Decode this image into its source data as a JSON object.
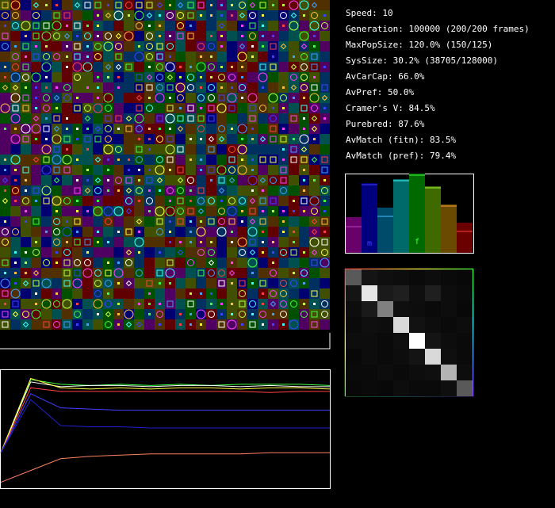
{
  "stats": [
    "Speed: 10",
    "Generation: 100000 (200/200 frames)",
    "MaxPopSize: 120.0% (150/125)",
    "SysSize: 30.2% (38705/128000)",
    "AvCarCap: 66.0%",
    "AvPref: 50.0%",
    "Cramer's V: 84.5%",
    "Purebred: 87.6%",
    "AvMatch (fitn): 83.5%",
    "AvMatch (pref): 79.4%"
  ],
  "bars": {
    "values": [
      0.45,
      0.88,
      0.57,
      0.93,
      1.0,
      0.84,
      0.61,
      0.38
    ],
    "markers": [
      0.33,
      0.86,
      0.46,
      0.91,
      0.98,
      0.82,
      0.59,
      0.27
    ],
    "colors": [
      "#6a006a",
      "#00007f",
      "#004a6a",
      "#006a6a",
      "#006a00",
      "#3f6a00",
      "#6a4a00",
      "#6a0000"
    ],
    "marker_colors": [
      "#c040c0",
      "#4040ff",
      "#40c0ff",
      "#40ffff",
      "#40ff40",
      "#a0ff40",
      "#ffa040",
      "#ff4040"
    ],
    "labels": [
      "m",
      "f"
    ]
  },
  "matrix": {
    "rows": [
      [
        0.35,
        0.08,
        0.06,
        0.05,
        0.04,
        0.05,
        0.04,
        0.03
      ],
      [
        0.08,
        0.9,
        0.1,
        0.12,
        0.06,
        0.12,
        0.05,
        0.04
      ],
      [
        0.05,
        0.1,
        0.5,
        0.06,
        0.05,
        0.04,
        0.05,
        0.03
      ],
      [
        0.04,
        0.06,
        0.05,
        0.85,
        0.07,
        0.05,
        0.04,
        0.05
      ],
      [
        0.05,
        0.05,
        0.04,
        0.06,
        1.0,
        0.08,
        0.05,
        0.04
      ],
      [
        0.03,
        0.05,
        0.04,
        0.05,
        0.08,
        0.85,
        0.06,
        0.04
      ],
      [
        0.04,
        0.04,
        0.05,
        0.04,
        0.05,
        0.06,
        0.7,
        0.05
      ],
      [
        0.03,
        0.04,
        0.03,
        0.05,
        0.04,
        0.04,
        0.06,
        0.35
      ]
    ]
  },
  "graph": {
    "series": [
      {
        "color": "#40ff40",
        "values": [
          0.3,
          0.92,
          0.88,
          0.87,
          0.88,
          0.87,
          0.88,
          0.87,
          0.88,
          0.88,
          0.88,
          0.87
        ]
      },
      {
        "color": "#ffffff",
        "values": [
          0.3,
          0.9,
          0.86,
          0.87,
          0.87,
          0.86,
          0.87,
          0.87,
          0.86,
          0.87,
          0.86,
          0.86
        ]
      },
      {
        "color": "#ffff40",
        "values": [
          0.3,
          0.93,
          0.85,
          0.84,
          0.85,
          0.84,
          0.85,
          0.85,
          0.84,
          0.85,
          0.85,
          0.84
        ]
      },
      {
        "color": "#ff4040",
        "values": [
          0.3,
          0.85,
          0.82,
          0.82,
          0.82,
          0.82,
          0.82,
          0.82,
          0.82,
          0.81,
          0.82,
          0.82
        ]
      },
      {
        "color": "#4040ff",
        "values": [
          0.3,
          0.8,
          0.68,
          0.67,
          0.66,
          0.66,
          0.66,
          0.66,
          0.66,
          0.66,
          0.66,
          0.66
        ]
      },
      {
        "color": "#2020d0",
        "values": [
          0.3,
          0.75,
          0.53,
          0.52,
          0.52,
          0.51,
          0.51,
          0.51,
          0.51,
          0.51,
          0.51,
          0.51
        ]
      },
      {
        "color": "#ff8060",
        "values": [
          0.05,
          0.15,
          0.25,
          0.27,
          0.28,
          0.29,
          0.29,
          0.29,
          0.29,
          0.3,
          0.3,
          0.3
        ]
      }
    ]
  }
}
